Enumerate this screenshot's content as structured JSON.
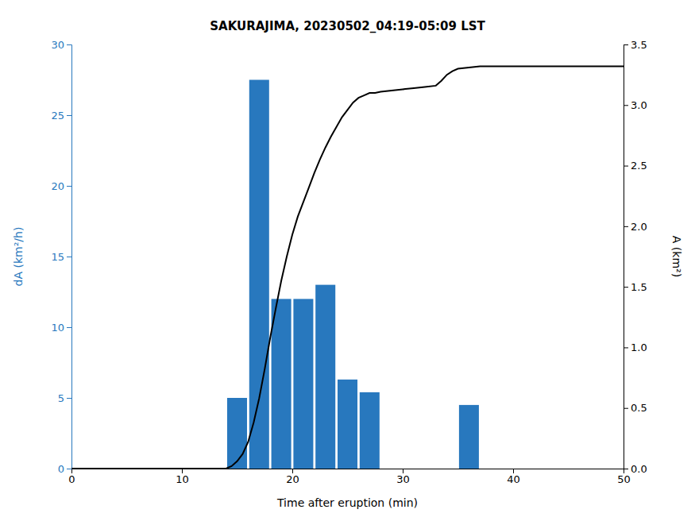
{
  "chart_data": {
    "type": "bar",
    "title": "SAKURAJIMA, 20230502_04:19-05:09 LST",
    "xlabel": "Time after eruption (min)",
    "ylabel": "dA (km²/h)",
    "y2label": "A (km²)",
    "xlim": [
      0,
      50
    ],
    "xticks": [
      0,
      10,
      20,
      30,
      40,
      50
    ],
    "ylim": [
      0,
      30
    ],
    "yticks": [
      0,
      5,
      10,
      15,
      20,
      25,
      30
    ],
    "y2lim": [
      0,
      3.5
    ],
    "y2ticks": [
      {
        "value": 0,
        "label": "0.0"
      },
      0.5,
      {
        "value": 1.0,
        "label": "1.0"
      },
      1.5,
      {
        "value": 2.0,
        "label": "2.0"
      },
      2.5,
      {
        "value": 3.0,
        "label": "3.0"
      },
      3.5
    ],
    "grid": false,
    "series": [
      {
        "type": "bar",
        "color": "#2878BE",
        "x": [
          15,
          17,
          19,
          21,
          23,
          25,
          27,
          36
        ],
        "values": [
          5.0,
          27.5,
          12.0,
          12.0,
          13.0,
          6.3,
          5.4,
          4.5
        ]
      },
      {
        "type": "line",
        "axis": "y2",
        "color": "#000000",
        "x": [
          0,
          14.0,
          14.5,
          15.0,
          15.5,
          16.0,
          16.5,
          17.0,
          17.5,
          18.0,
          18.5,
          19.0,
          19.5,
          20.0,
          20.5,
          21.0,
          21.5,
          22.0,
          22.5,
          23.0,
          23.5,
          24.0,
          24.5,
          25.0,
          25.5,
          26.0,
          26.5,
          27.0,
          27.5,
          28.0,
          29.0,
          30.0,
          31.0,
          32.0,
          33.0,
          33.5,
          34.0,
          34.5,
          35.0,
          36.0,
          37.0,
          49.0,
          50.0
        ],
        "values": [
          0,
          0.0,
          0.02,
          0.06,
          0.12,
          0.22,
          0.38,
          0.58,
          0.82,
          1.08,
          1.32,
          1.55,
          1.75,
          1.93,
          2.08,
          2.2,
          2.32,
          2.44,
          2.55,
          2.65,
          2.74,
          2.82,
          2.9,
          2.96,
          3.02,
          3.06,
          3.08,
          3.1,
          3.1,
          3.11,
          3.12,
          3.13,
          3.14,
          3.15,
          3.16,
          3.2,
          3.25,
          3.28,
          3.3,
          3.31,
          3.32,
          3.32,
          3.32
        ]
      }
    ]
  }
}
